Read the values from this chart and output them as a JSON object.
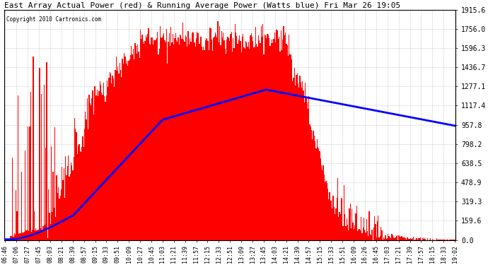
{
  "title": "East Array Actual Power (red) & Running Average Power (Watts blue) Fri Mar 26 19:05",
  "copyright": "Copyright 2010 Cartronics.com",
  "background_color": "#ffffff",
  "plot_bg_color": "#ffffff",
  "grid_color": "#aaaaaa",
  "y_ticks": [
    0.0,
    159.6,
    319.3,
    478.9,
    638.5,
    798.2,
    957.8,
    1117.4,
    1277.1,
    1436.7,
    1596.3,
    1756.0,
    1915.6
  ],
  "ymax": 1915.6,
  "ymin": 0.0,
  "x_tick_labels": [
    "06:46",
    "07:06",
    "07:27",
    "07:45",
    "08:03",
    "08:21",
    "08:39",
    "08:57",
    "09:15",
    "09:33",
    "09:51",
    "10:09",
    "10:27",
    "10:45",
    "11:03",
    "11:21",
    "11:39",
    "11:57",
    "12:15",
    "12:33",
    "12:51",
    "13:09",
    "13:27",
    "13:45",
    "14:03",
    "14:21",
    "14:39",
    "14:57",
    "15:15",
    "15:33",
    "15:51",
    "16:09",
    "16:26",
    "16:45",
    "17:03",
    "17:21",
    "17:39",
    "17:57",
    "18:15",
    "18:33",
    "19:02"
  ],
  "bar_color": "#ff0000",
  "avg_color": "#0000ff",
  "avg_linewidth": 2.0,
  "n_points": 500
}
